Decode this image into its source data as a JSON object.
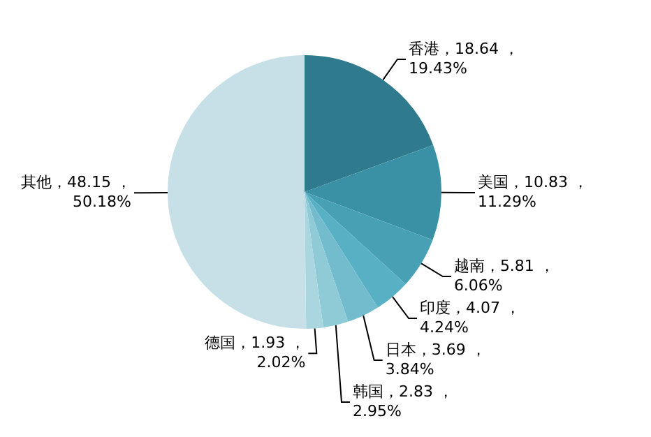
{
  "chart_data": {
    "type": "pie",
    "legend": false,
    "categories": [
      "香港",
      "美国",
      "越南",
      "印度",
      "日本",
      "韩国",
      "德国",
      "其他"
    ],
    "values": [
      18.64,
      10.83,
      5.81,
      4.07,
      3.69,
      2.83,
      1.93,
      48.15
    ],
    "colors": [
      "#2f7b8d",
      "#3a91a5",
      "#48a0b5",
      "#58b0c5",
      "#72bccd",
      "#8fcad7",
      "#aad6e0",
      "#c7e0e8"
    ],
    "value_labels": [
      "，18.64 ，\n19.43%",
      "，10.83 ，\n11.29%",
      "，5.81 ，\n6.06%",
      "，4.07 ，\n4.24%",
      "，3.69 ，\n3.84%",
      "，2.83 ，\n2.95%",
      "，1.93 ，\n2.02%",
      "，48.15 ，\n50.18%"
    ]
  }
}
